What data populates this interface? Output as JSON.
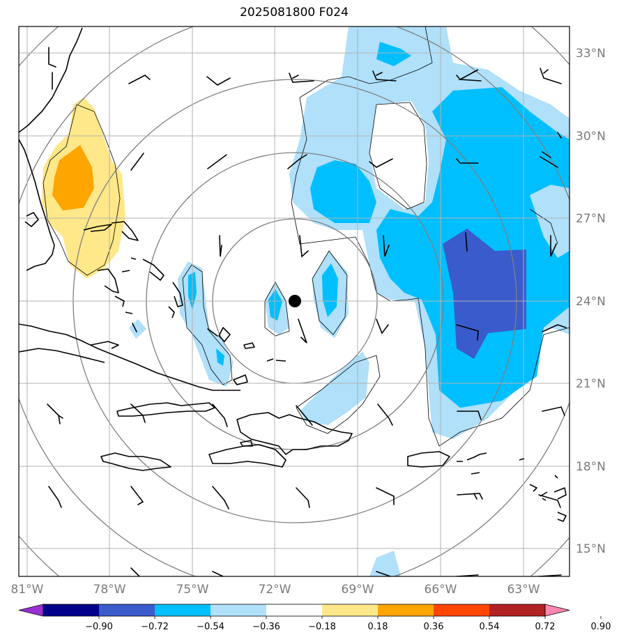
{
  "title": "2025081800 F024",
  "map": {
    "lon_labels": [
      "81°W",
      "78°W",
      "75°W",
      "72°W",
      "69°W",
      "66°W",
      "63°W"
    ],
    "lat_labels": [
      "33°N",
      "30°N",
      "27°N",
      "24°N",
      "21°N",
      "18°N",
      "15°N"
    ],
    "center_marker": {
      "lon": -71.3,
      "lat": 24.0
    }
  },
  "colorbar": {
    "ticks": [
      "−0.90",
      "−0.72",
      "−0.54",
      "−0.36",
      "−0.18",
      "0.18",
      "0.36",
      "0.54",
      "0.72",
      "0.90"
    ],
    "colors": [
      "#9a2fd6",
      "#00008b",
      "#3a5bcc",
      "#00bfff",
      "#b0e0fa",
      "#ffffff",
      "#ffe88a",
      "#ffa500",
      "#ff4500",
      "#b22222",
      "#ff88b0"
    ]
  }
}
